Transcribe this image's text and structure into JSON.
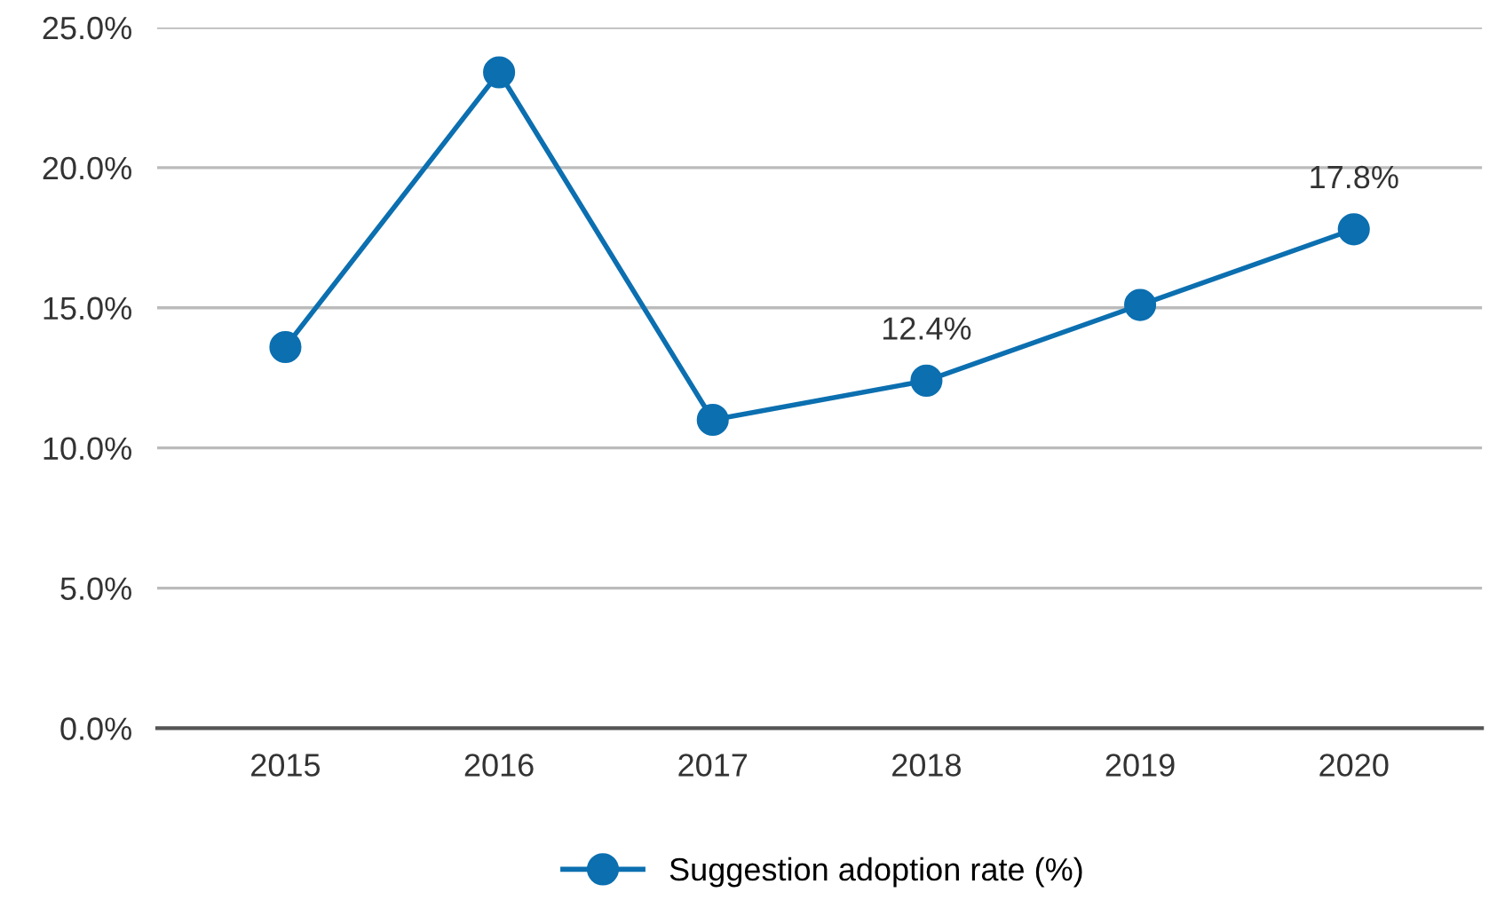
{
  "chart_data": {
    "type": "line",
    "categories": [
      "2015",
      "2016",
      "2017",
      "2018",
      "2019",
      "2020"
    ],
    "series": [
      {
        "name": "Suggestion adoption rate (%)",
        "color": "#0b6fb0",
        "values": [
          13.6,
          23.4,
          11.0,
          12.4,
          15.1,
          17.8
        ],
        "value_labels": [
          null,
          null,
          null,
          "12.4%",
          null,
          "17.8%"
        ]
      }
    ],
    "ylim": [
      0,
      25
    ],
    "yticks": [
      {
        "value": 0,
        "label": "0.0%"
      },
      {
        "value": 5,
        "label": "5.0%"
      },
      {
        "value": 10,
        "label": "10.0%"
      },
      {
        "value": 15,
        "label": "15.0%"
      },
      {
        "value": 20,
        "label": "20.0%"
      },
      {
        "value": 25,
        "label": "25.0%"
      }
    ],
    "grid": "y",
    "legend": "bottom",
    "marker": "circle",
    "line_style": "solid"
  }
}
